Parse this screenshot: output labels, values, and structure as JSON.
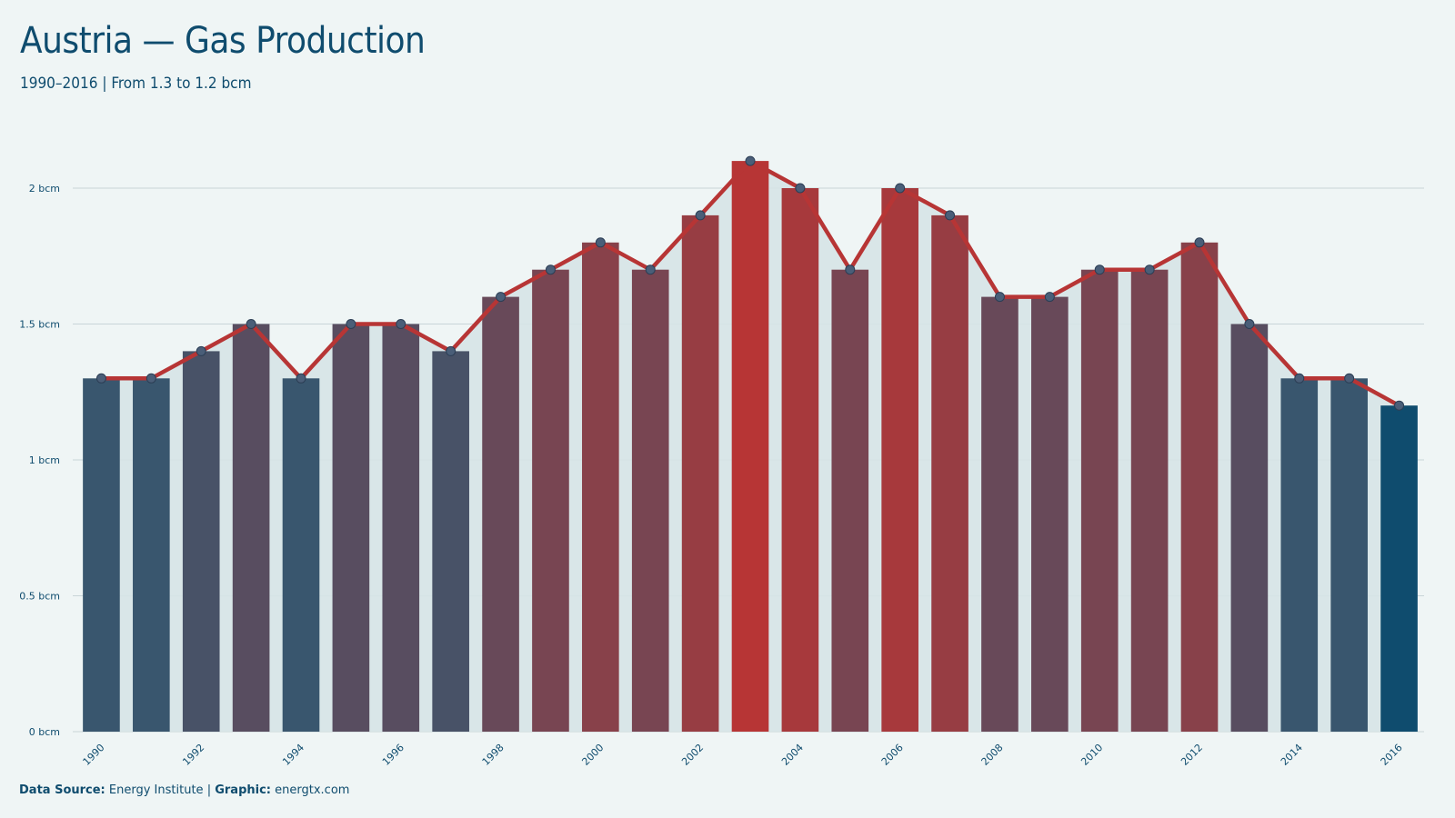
{
  "header": {
    "title": "Austria — Gas Production",
    "subtitle": "1990–2016 | From 1.3 to 1.2 bcm"
  },
  "footer": {
    "source_label": "Data Source:",
    "source_value": "Energy Institute",
    "separator": "|",
    "graphic_label": "Graphic:",
    "graphic_value": "energtx.com"
  },
  "colors": {
    "background": "#eff5f5",
    "low": "#37566f",
    "high": "#b73535",
    "last_bar": "#0f4c6e",
    "line": "#b73535",
    "area": "#d6e4e7",
    "marker": "#4a5e78",
    "text": "#0f4c6e"
  },
  "chart_data": {
    "type": "bar",
    "x": [
      1990,
      1991,
      1992,
      1993,
      1994,
      1995,
      1996,
      1997,
      1998,
      1999,
      2000,
      2001,
      2002,
      2003,
      2004,
      2005,
      2006,
      2007,
      2008,
      2009,
      2010,
      2011,
      2012,
      2013,
      2014,
      2015,
      2016
    ],
    "values": [
      1.3,
      1.3,
      1.4,
      1.5,
      1.3,
      1.5,
      1.5,
      1.4,
      1.6,
      1.7,
      1.8,
      1.7,
      1.9,
      2.1,
      2.0,
      1.7,
      2.0,
      1.9,
      1.6,
      1.6,
      1.7,
      1.7,
      1.8,
      1.5,
      1.3,
      1.3,
      1.2
    ],
    "x_tick_labels": [
      "1990",
      "1992",
      "1994",
      "1996",
      "1998",
      "2000",
      "2002",
      "2004",
      "2006",
      "2008",
      "2010",
      "2012",
      "2014",
      "2016"
    ],
    "y_ticks": [
      0,
      0.5,
      1,
      1.5,
      2
    ],
    "y_tick_labels": [
      "0 bcm",
      "0.5 bcm",
      "1 bcm",
      "1.5 bcm",
      "2 bcm"
    ],
    "ylim": [
      0,
      2.1
    ],
    "unit": "bcm",
    "overlay": "line-with-markers-and-area",
    "grid": true,
    "xlabel": "",
    "ylabel": ""
  }
}
